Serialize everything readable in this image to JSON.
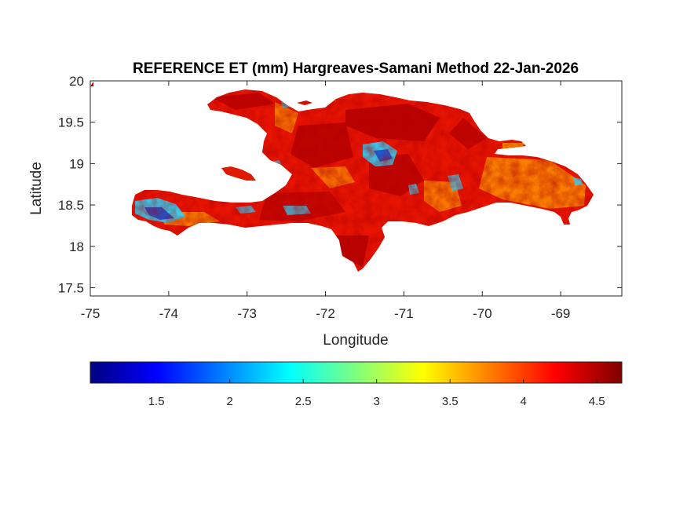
{
  "title": "REFERENCE ET (mm) Hargreaves-Samani Method  22-Jan-2026",
  "xlabel": "Longitude",
  "ylabel": "Latitude",
  "x_ticks": [
    -75,
    -74,
    -73,
    -72,
    -71,
    -70,
    -69
  ],
  "y_ticks": [
    20,
    19.5,
    19,
    18.5,
    18,
    17.5
  ],
  "x_tick_labels": [
    "-75",
    "-74",
    "-73",
    "-72",
    "-71",
    "-70",
    "-69"
  ],
  "y_tick_labels": [
    "20",
    "19.5",
    "19",
    "18.5",
    "18",
    "17.5"
  ],
  "xlim": [
    -75,
    -68.22
  ],
  "ylim": [
    17.4,
    20
  ],
  "colorbar": {
    "colormap": "jet",
    "range": [
      1.05,
      4.67
    ],
    "ticks": [
      1.5,
      2,
      2.5,
      3,
      3.5,
      4,
      4.5
    ],
    "tick_labels": [
      "1.5",
      "2",
      "2.5",
      "3",
      "3.5",
      "4",
      "4.5"
    ]
  },
  "colors": {
    "high_et": "#b40000",
    "mid_high_et": "#ff2a00",
    "mid_et": "#ffa000",
    "low_et": "#2ad4ff",
    "very_low_et": "#1040d0"
  }
}
